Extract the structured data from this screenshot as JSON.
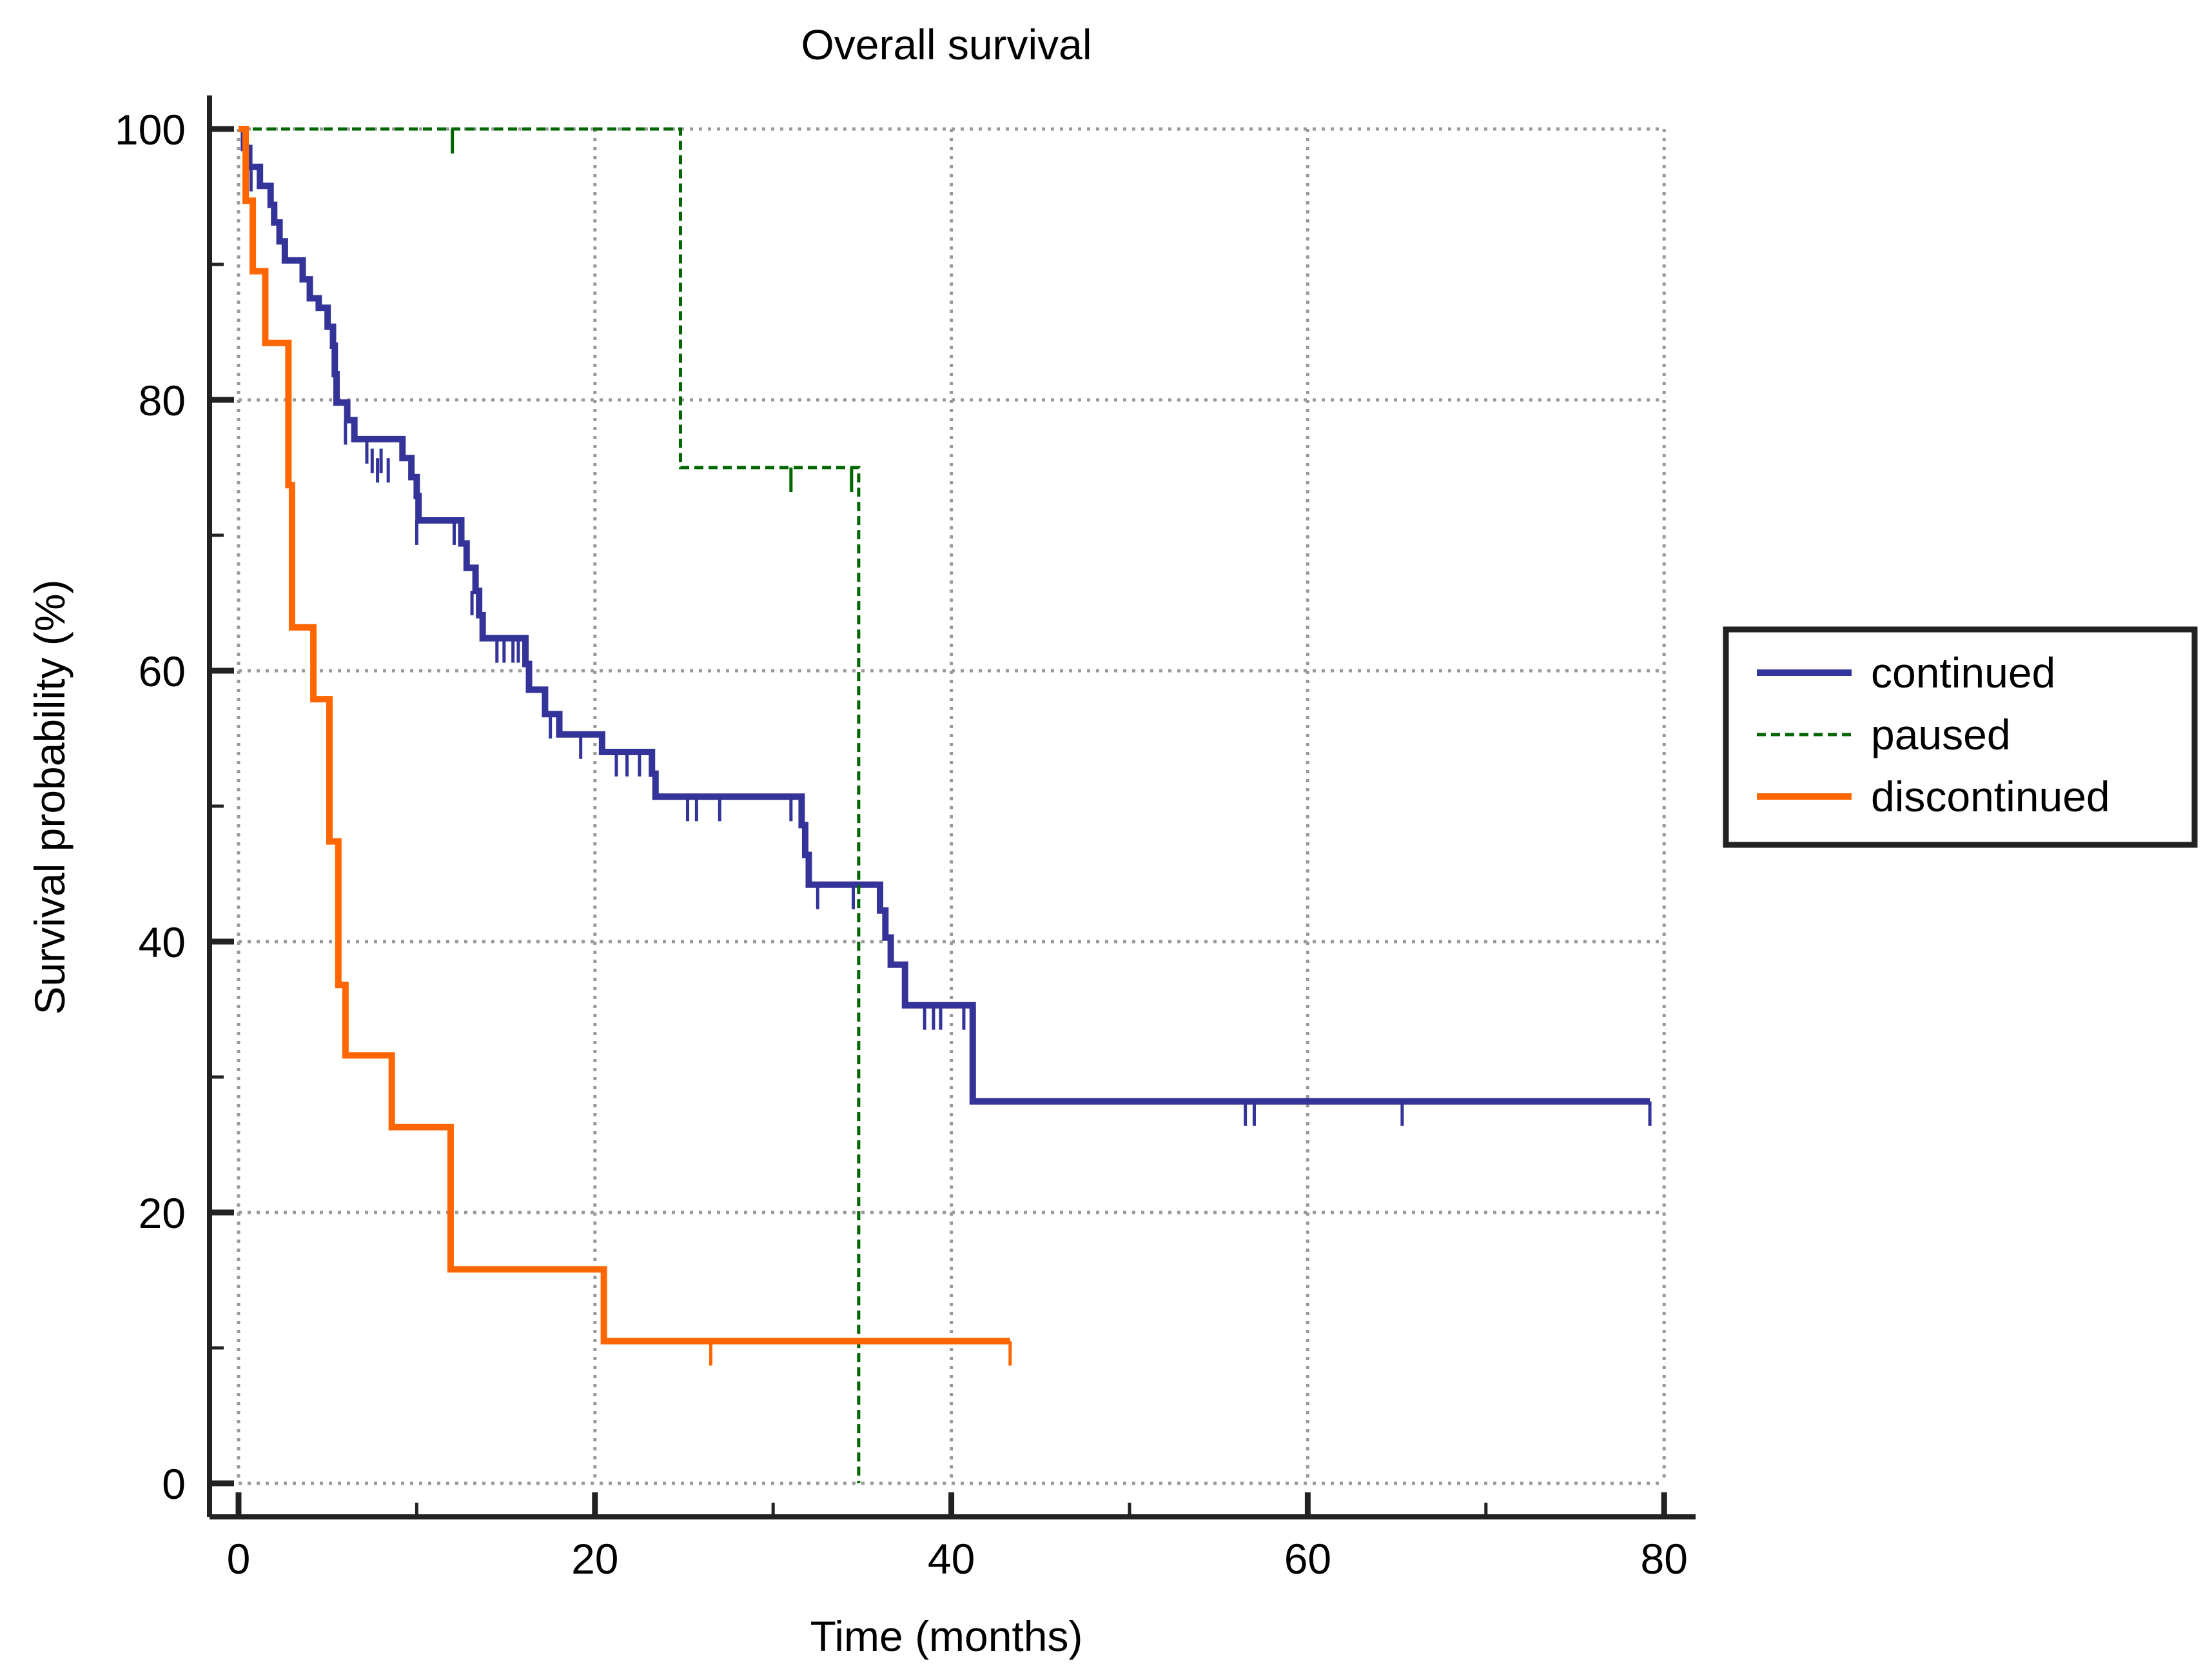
{
  "chart_data": {
    "type": "line",
    "subtype": "kaplan-meier",
    "title": "Overall survival",
    "xlabel": "Time (months)",
    "ylabel": "Survival probability (%)",
    "xlim": [
      -2,
      82
    ],
    "ylim": [
      -2,
      102
    ],
    "xticks": [
      0,
      20,
      40,
      60,
      80
    ],
    "xtick_labels": [
      "0",
      "20",
      "40",
      "60",
      "80"
    ],
    "yticks": [
      0,
      20,
      40,
      60,
      80,
      100
    ],
    "ytick_labels": [
      "0",
      "20",
      "40",
      "60",
      "80",
      "100"
    ],
    "grid": true,
    "legend_position": "right",
    "series": [
      {
        "name": "continued",
        "color": "#333399",
        "style": "solid",
        "steps": [
          [
            0,
            100
          ],
          [
            0.3,
            98.6
          ],
          [
            0.6,
            97.2
          ],
          [
            1.2,
            95.8
          ],
          [
            1.8,
            94.4
          ],
          [
            2.0,
            93.1
          ],
          [
            2.3,
            91.7
          ],
          [
            2.6,
            90.3
          ],
          [
            3.6,
            88.9
          ],
          [
            4.0,
            87.5
          ],
          [
            4.5,
            86.8
          ],
          [
            5.0,
            85.4
          ],
          [
            5.3,
            84.0
          ],
          [
            5.4,
            81.9
          ],
          [
            5.5,
            79.8
          ],
          [
            6.1,
            78.5
          ],
          [
            6.5,
            77.1
          ],
          [
            9.2,
            75.7
          ],
          [
            9.7,
            74.3
          ],
          [
            10.0,
            72.9
          ],
          [
            10.1,
            71.1
          ],
          [
            12.5,
            69.4
          ],
          [
            12.8,
            67.6
          ],
          [
            13.3,
            65.9
          ],
          [
            13.5,
            64.1
          ],
          [
            13.7,
            62.4
          ],
          [
            16.1,
            60.5
          ],
          [
            16.3,
            58.6
          ],
          [
            17.2,
            56.8
          ],
          [
            18.0,
            55.3
          ],
          [
            20.4,
            54.0
          ],
          [
            23.2,
            52.4
          ],
          [
            23.4,
            50.7
          ],
          [
            31.6,
            48.6
          ],
          [
            31.8,
            46.4
          ],
          [
            32.0,
            44.2
          ],
          [
            36.0,
            42.3
          ],
          [
            36.3,
            40.3
          ],
          [
            36.6,
            38.3
          ],
          [
            37.4,
            35.3
          ],
          [
            41.2,
            28.2
          ],
          [
            79.2,
            28.2
          ]
        ],
        "censored": [
          [
            0.7,
            97.2
          ],
          [
            6.0,
            78.5
          ],
          [
            7.2,
            77.1
          ],
          [
            7.5,
            76.4
          ],
          [
            7.8,
            75.7
          ],
          [
            8.0,
            76.4
          ],
          [
            8.4,
            75.7
          ],
          [
            10.0,
            71.1
          ],
          [
            12.1,
            71.1
          ],
          [
            13.1,
            65.9
          ],
          [
            14.5,
            62.4
          ],
          [
            14.9,
            62.4
          ],
          [
            15.4,
            62.4
          ],
          [
            15.7,
            62.4
          ],
          [
            17.5,
            56.8
          ],
          [
            19.2,
            55.3
          ],
          [
            21.2,
            54.0
          ],
          [
            21.8,
            54.0
          ],
          [
            22.5,
            54.0
          ],
          [
            25.2,
            50.7
          ],
          [
            25.7,
            50.7
          ],
          [
            27.0,
            50.7
          ],
          [
            31.0,
            50.7
          ],
          [
            32.5,
            44.2
          ],
          [
            34.5,
            44.2
          ],
          [
            38.5,
            35.3
          ],
          [
            39.0,
            35.3
          ],
          [
            39.4,
            35.3
          ],
          [
            40.7,
            35.3
          ],
          [
            56.5,
            28.2
          ],
          [
            57.0,
            28.2
          ],
          [
            65.3,
            28.2
          ],
          [
            79.2,
            28.2
          ]
        ]
      },
      {
        "name": "paused",
        "color": "#006600",
        "style": "dashed",
        "steps": [
          [
            0,
            100
          ],
          [
            24.8,
            75.0
          ],
          [
            34.8,
            0
          ]
        ],
        "censored": [
          [
            12.0,
            100
          ],
          [
            31.0,
            75.0
          ],
          [
            34.4,
            75.0
          ]
        ]
      },
      {
        "name": "discontinued",
        "color": "#ff6600",
        "style": "solid",
        "steps": [
          [
            0,
            100
          ],
          [
            0.4,
            94.7
          ],
          [
            0.8,
            89.5
          ],
          [
            1.5,
            84.2
          ],
          [
            2.8,
            73.7
          ],
          [
            3.0,
            63.2
          ],
          [
            4.2,
            57.9
          ],
          [
            5.1,
            47.4
          ],
          [
            5.6,
            36.8
          ],
          [
            6.0,
            31.6
          ],
          [
            8.6,
            26.3
          ],
          [
            11.9,
            15.8
          ],
          [
            20.5,
            10.5
          ],
          [
            43.3,
            10.5
          ]
        ],
        "censored": [
          [
            26.5,
            10.5
          ],
          [
            43.3,
            10.5
          ]
        ]
      }
    ]
  }
}
